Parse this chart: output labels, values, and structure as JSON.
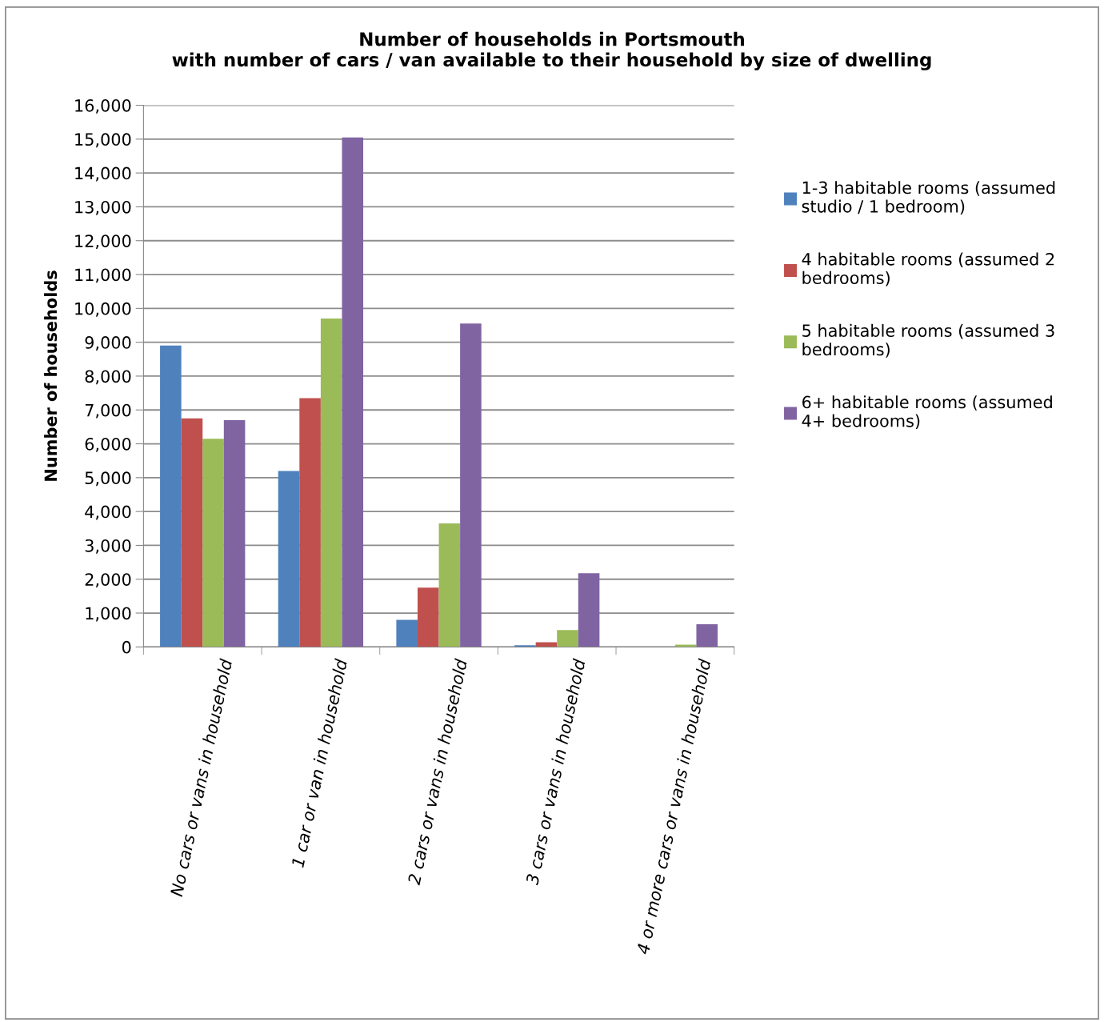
{
  "chart_data": {
    "type": "bar",
    "title": "Number of households in Portsmouth\nwith number of cars / van available to their household by size of dwelling",
    "ylabel": "Number of households",
    "categories": [
      "No cars or vans in household",
      "1 car or van in household",
      "2 cars or vans in household",
      "3 cars or vans in household",
      "4 or more cars or vans in household"
    ],
    "series": [
      {
        "name": "1-3 habitable rooms (assumed studio / 1 bedroom)",
        "color": "#4f81bd",
        "values": [
          8900,
          5200,
          800,
          50,
          0
        ]
      },
      {
        "name": "4 habitable rooms (assumed 2 bedrooms)",
        "color": "#c0504d",
        "values": [
          6750,
          7350,
          1750,
          140,
          0
        ]
      },
      {
        "name": "5 habitable rooms (assumed 3 bedrooms)",
        "color": "#9bbb59",
        "values": [
          6150,
          9700,
          3650,
          500,
          70
        ]
      },
      {
        "name": "6+ habitable rooms (assumed 4+ bedrooms)",
        "color": "#8064a2",
        "values": [
          6700,
          15050,
          9550,
          2180,
          670
        ]
      }
    ],
    "ylim": [
      0,
      16000
    ],
    "yticks": [
      {
        "value": 0,
        "label": "0"
      },
      {
        "value": 1000,
        "label": "1,000"
      },
      {
        "value": 2000,
        "label": "2,000"
      },
      {
        "value": 3000,
        "label": "3,000"
      },
      {
        "value": 4000,
        "label": "4,000"
      },
      {
        "value": 5000,
        "label": "5,000"
      },
      {
        "value": 6000,
        "label": "6,000"
      },
      {
        "value": 7000,
        "label": "7,000"
      },
      {
        "value": 8000,
        "label": "8,000"
      },
      {
        "value": 9000,
        "label": "9,000"
      },
      {
        "value": 10000,
        "label": "10,000"
      },
      {
        "value": 11000,
        "label": "11,000"
      },
      {
        "value": 12000,
        "label": "12,000"
      },
      {
        "value": 13000,
        "label": "13,000"
      },
      {
        "value": 14000,
        "label": "14,000"
      },
      {
        "value": 15000,
        "label": "15,000"
      },
      {
        "value": 16000,
        "label": "16,000"
      }
    ],
    "grid": "y",
    "legend": "right"
  }
}
